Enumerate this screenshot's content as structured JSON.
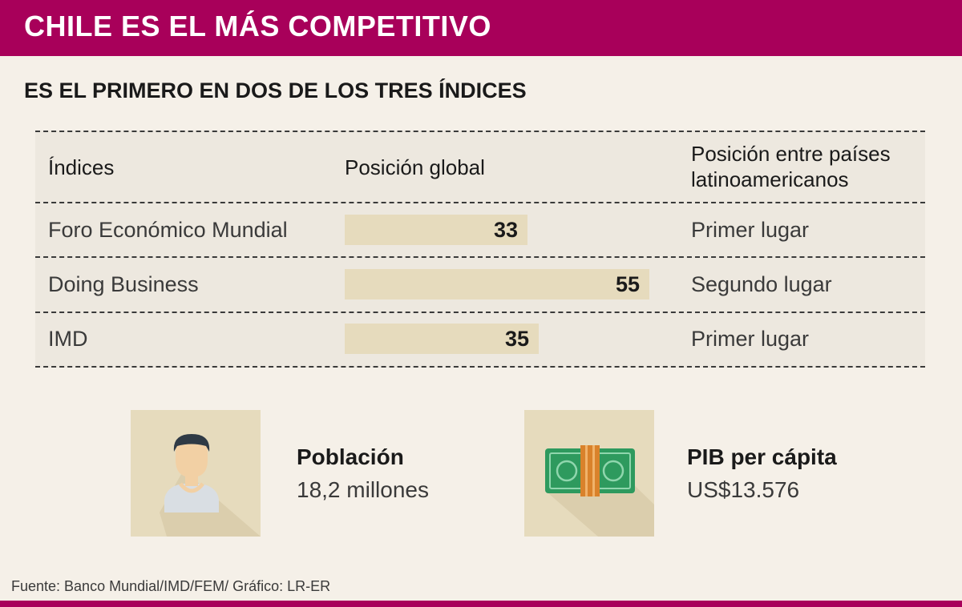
{
  "header": {
    "title": "CHILE ES EL MÁS COMPETITIVO"
  },
  "subtitle": "ES EL PRIMERO EN DOS DE LOS TRES ÍNDICES",
  "table": {
    "headers": {
      "index": "Índices",
      "global": "Posición global",
      "latam_line1": "Posición entre países",
      "latam_line2": "latinoamericanos"
    }
  },
  "chart_data": {
    "type": "bar",
    "orientation": "horizontal",
    "categories": [
      "Foro Económico Mundial",
      "Doing Business",
      "IMD"
    ],
    "values": [
      33,
      55,
      35
    ],
    "value_labels": [
      "33",
      "55",
      "35"
    ],
    "latam_position": [
      "Primer lugar",
      "Segundo lugar",
      "Primer lugar"
    ],
    "title": "ES EL PRIMERO EN DOS DE LOS TRES ÍNDICES",
    "xlabel": "Posición global",
    "ylabel": "Índices",
    "xlim": [
      0,
      55
    ]
  },
  "stats": {
    "population": {
      "label": "Población",
      "value": "18,2 millones",
      "icon": "person-icon"
    },
    "gdp": {
      "label": "PIB per cápita",
      "value": "US$13.576",
      "icon": "banknote-icon"
    }
  },
  "source": "Fuente: Banco Mundial/IMD/FEM/ Gráfico: LR-ER",
  "colors": {
    "brand": "#a8005a",
    "background": "#f5f0e8",
    "panel": "#ede8df",
    "bar": "#e6dbbd",
    "money_green": "#2e9a5e",
    "money_band": "#d9822b",
    "skin": "#f2d0a4",
    "hair": "#2f3a45"
  }
}
